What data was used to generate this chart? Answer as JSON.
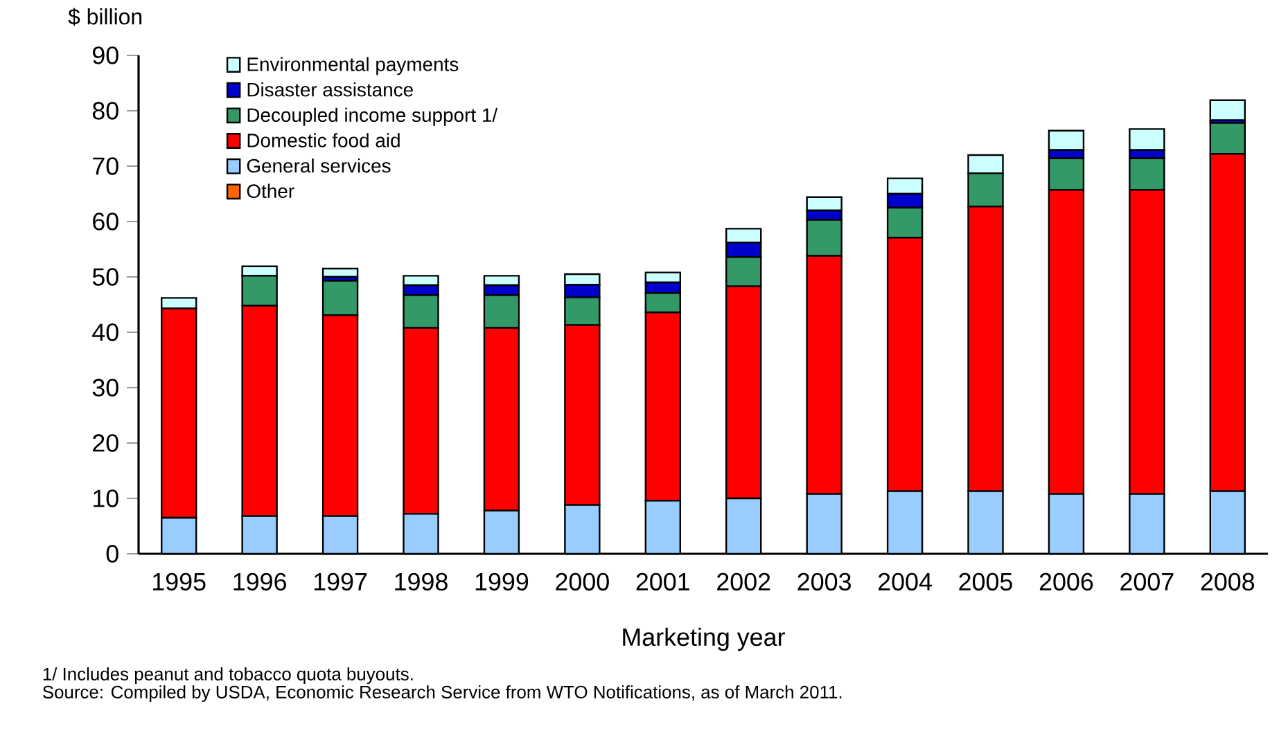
{
  "chart_data": {
    "type": "bar",
    "stacked": true,
    "ylabel": "$ billion",
    "xlabel": "Marketing year",
    "categories": [
      "1995",
      "1996",
      "1997",
      "1998",
      "1999",
      "2000",
      "2001",
      "2002",
      "2003",
      "2004",
      "2005",
      "2006",
      "2007",
      "2008"
    ],
    "series": [
      {
        "name": "Other",
        "color": "#ff6600",
        "values": [
          0,
          0,
          0,
          0,
          0,
          0,
          0,
          0,
          0,
          0,
          0,
          0,
          0,
          0
        ]
      },
      {
        "name": "General services",
        "color": "#99ccff",
        "values": [
          6.5,
          6.8,
          6.8,
          7.2,
          7.8,
          8.8,
          9.6,
          10,
          10.8,
          11.3,
          11.3,
          10.8,
          10.8,
          11.3
        ]
      },
      {
        "name": "Domestic food aid",
        "color": "#ff0000",
        "values": [
          37.8,
          38,
          36.3,
          33.6,
          33,
          32.5,
          34,
          38.3,
          43,
          45.8,
          51.4,
          54.9,
          54.9,
          60.9
        ]
      },
      {
        "name": "Decoupled income support 1/",
        "color": "#339966",
        "values": [
          0,
          5.4,
          6.2,
          5.9,
          5.9,
          5,
          3.5,
          5.3,
          6.5,
          5.4,
          6,
          5.7,
          5.7,
          5.6
        ]
      },
      {
        "name": "Disaster assistance",
        "color": "#0000cc",
        "values": [
          0,
          0,
          0.7,
          1.8,
          1.8,
          2.3,
          1.9,
          2.6,
          1.7,
          2.5,
          0,
          1.5,
          1.5,
          0.5
        ]
      },
      {
        "name": "Environmental payments",
        "color": "#ccffff",
        "values": [
          1.9,
          1.7,
          1.5,
          1.7,
          1.7,
          1.9,
          1.8,
          2.5,
          2.4,
          2.8,
          3.3,
          3.5,
          3.8,
          3.6
        ]
      }
    ],
    "ylim": [
      0,
      90
    ],
    "yticks": [
      0,
      10,
      20,
      30,
      40,
      50,
      60,
      70,
      80,
      90
    ],
    "legend": "top left",
    "annotations": [
      "1/ Includes peanut and tobacco quota buyouts.",
      "Source: Compiled by USDA, Economic Research Service from WTO Notifications, as of March 2011."
    ]
  }
}
